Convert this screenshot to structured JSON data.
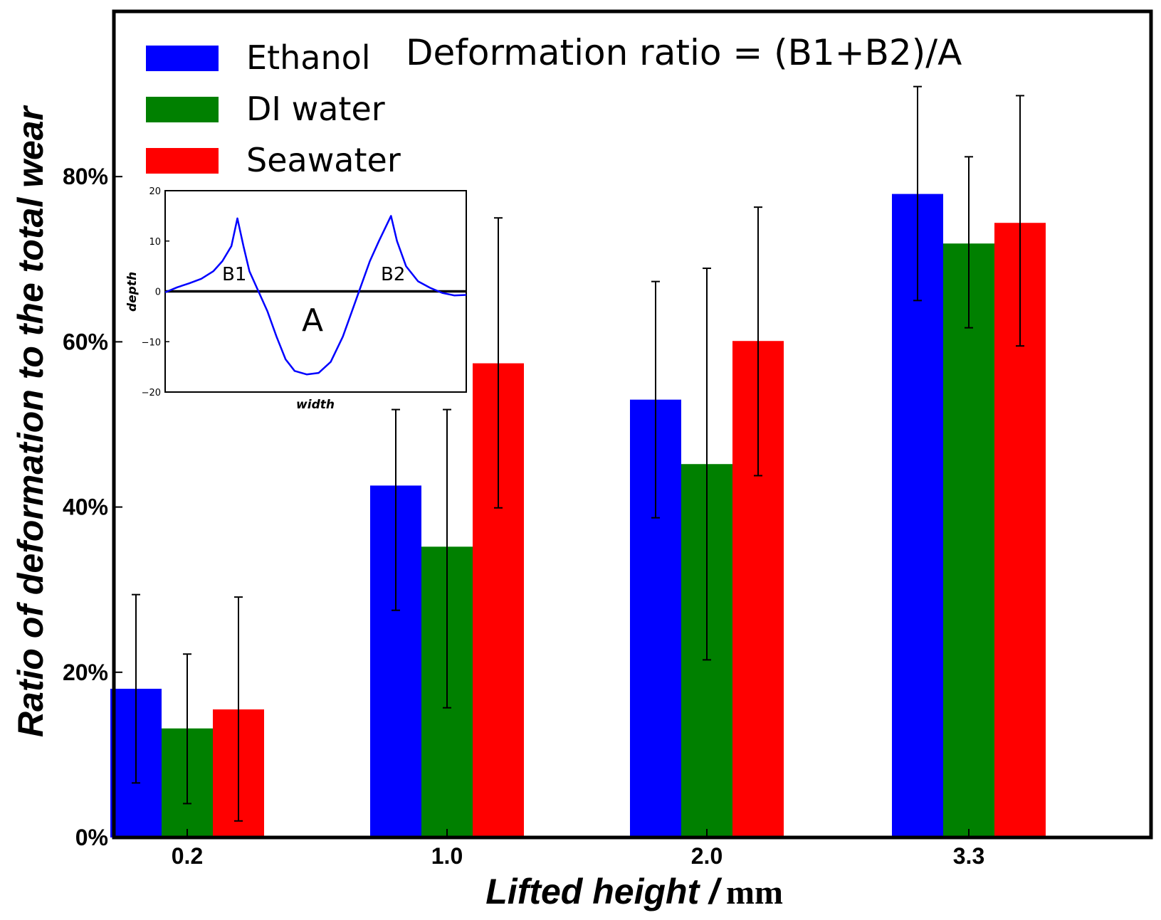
{
  "chart_data": {
    "type": "bar",
    "title": "",
    "xlabel": "Lifted height /",
    "xlabel_unit": "mm",
    "ylabel": "Ratio of deformation to the total wear",
    "ylim": [
      0,
      100
    ],
    "yticks": [
      "0%",
      "20%",
      "40%",
      "60%",
      "80%"
    ],
    "ytick_values": [
      0,
      20,
      40,
      60,
      80
    ],
    "grid": false,
    "legend_position": "top-left",
    "categories": [
      "0.2",
      "1.0",
      "2.0",
      "3.3"
    ],
    "series": [
      {
        "name": "Ethanol",
        "color": "#0000ff",
        "values": [
          18.0,
          42.6,
          53.0,
          77.9
        ],
        "error_low": [
          11.4,
          15.1,
          14.3,
          12.9
        ],
        "error_high": [
          11.4,
          9.2,
          14.3,
          13.0
        ]
      },
      {
        "name": "DI water",
        "color": "#008000",
        "values": [
          13.2,
          35.2,
          45.2,
          71.9
        ],
        "error_low": [
          9.1,
          19.5,
          23.7,
          10.2
        ],
        "error_high": [
          9.0,
          16.6,
          23.7,
          10.5
        ]
      },
      {
        "name": "Seawater",
        "color": "#ff0000",
        "values": [
          15.5,
          57.4,
          60.1,
          74.4
        ],
        "error_low": [
          13.5,
          17.5,
          16.3,
          14.9
        ],
        "error_high": [
          13.6,
          17.6,
          16.2,
          15.4
        ]
      }
    ],
    "annotation": "Deformation ratio = (B1+B2)/A",
    "inset": {
      "type": "line",
      "xlabel": "width",
      "ylabel": "depth",
      "ylim": [
        -20,
        20
      ],
      "yticks": [
        "20",
        "10",
        "0",
        "−10",
        "−20"
      ],
      "ytick_values": [
        20,
        10,
        0,
        -10,
        -20
      ],
      "line_color": "#0000ff",
      "labels": [
        "B1",
        "B2",
        "A"
      ],
      "profile": [
        [
          0.0,
          -0.2
        ],
        [
          0.04,
          0.8
        ],
        [
          0.08,
          1.6
        ],
        [
          0.12,
          2.5
        ],
        [
          0.16,
          4.0
        ],
        [
          0.19,
          6.0
        ],
        [
          0.22,
          9.0
        ],
        [
          0.24,
          14.5
        ],
        [
          0.26,
          9.0
        ],
        [
          0.28,
          4.0
        ],
        [
          0.31,
          0.0
        ],
        [
          0.34,
          -4.0
        ],
        [
          0.37,
          -9.0
        ],
        [
          0.4,
          -13.5
        ],
        [
          0.43,
          -15.8
        ],
        [
          0.47,
          -16.5
        ],
        [
          0.51,
          -16.2
        ],
        [
          0.55,
          -14.0
        ],
        [
          0.59,
          -9.0
        ],
        [
          0.62,
          -4.0
        ],
        [
          0.65,
          1.0
        ],
        [
          0.68,
          6.0
        ],
        [
          0.71,
          10.0
        ],
        [
          0.75,
          15.0
        ],
        [
          0.77,
          10.0
        ],
        [
          0.8,
          5.0
        ],
        [
          0.84,
          2.0
        ],
        [
          0.88,
          0.7
        ],
        [
          0.92,
          -0.3
        ],
        [
          0.96,
          -0.8
        ],
        [
          1.0,
          -0.7
        ]
      ]
    }
  }
}
